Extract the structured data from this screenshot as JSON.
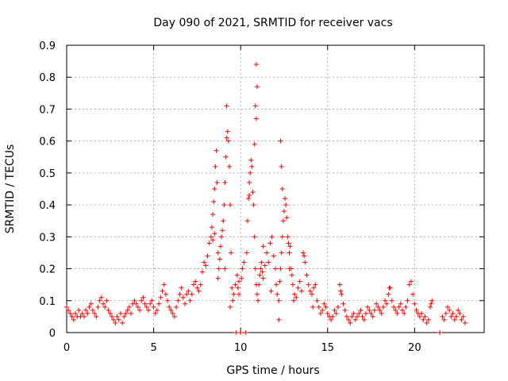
{
  "chart_data": {
    "type": "scatter",
    "title": "Day 090 of 2021, SRMTID for receiver vacs",
    "xlabel": "GPS time / hours",
    "ylabel": "SRMTID / TECUs",
    "xlim": [
      0,
      24
    ],
    "ylim": [
      0,
      0.9
    ],
    "xticks": [
      0,
      5,
      10,
      15,
      20
    ],
    "xtick_labels": [
      "0",
      "5",
      "10",
      "15",
      "20"
    ],
    "yticks": [
      0,
      0.1,
      0.2,
      0.3,
      0.4,
      0.5,
      0.6,
      0.7,
      0.8,
      0.9
    ],
    "ytick_labels": [
      "0",
      "0.1",
      "0.2",
      "0.3",
      "0.4",
      "0.5",
      "0.6",
      "0.7",
      "0.8",
      "0.9"
    ],
    "grid": true,
    "marker": "+",
    "color": "#ff0000",
    "series": [
      {
        "name": "SRMTID",
        "points": [
          [
            0.0,
            0.08
          ],
          [
            0.1,
            0.07
          ],
          [
            0.2,
            0.06
          ],
          [
            0.3,
            0.05
          ],
          [
            0.4,
            0.04
          ],
          [
            0.5,
            0.06
          ],
          [
            0.6,
            0.05
          ],
          [
            0.7,
            0.07
          ],
          [
            0.8,
            0.05
          ],
          [
            0.9,
            0.06
          ],
          [
            1.0,
            0.05
          ],
          [
            1.1,
            0.07
          ],
          [
            1.2,
            0.06
          ],
          [
            1.3,
            0.08
          ],
          [
            1.4,
            0.09
          ],
          [
            1.5,
            0.07
          ],
          [
            1.6,
            0.06
          ],
          [
            1.7,
            0.05
          ],
          [
            1.8,
            0.08
          ],
          [
            1.9,
            0.1
          ],
          [
            2.0,
            0.11
          ],
          [
            2.1,
            0.09
          ],
          [
            2.2,
            0.08
          ],
          [
            2.3,
            0.1
          ],
          [
            2.4,
            0.07
          ],
          [
            2.5,
            0.06
          ],
          [
            2.6,
            0.05
          ],
          [
            2.7,
            0.04
          ],
          [
            2.8,
            0.03
          ],
          [
            2.9,
            0.05
          ],
          [
            3.0,
            0.04
          ],
          [
            3.1,
            0.06
          ],
          [
            3.2,
            0.03
          ],
          [
            3.3,
            0.05
          ],
          [
            3.4,
            0.06
          ],
          [
            3.5,
            0.07
          ],
          [
            3.6,
            0.08
          ],
          [
            3.7,
            0.06
          ],
          [
            3.8,
            0.09
          ],
          [
            3.9,
            0.1
          ],
          [
            4.0,
            0.09
          ],
          [
            4.1,
            0.08
          ],
          [
            4.2,
            0.07
          ],
          [
            4.3,
            0.1
          ],
          [
            4.4,
            0.11
          ],
          [
            4.5,
            0.09
          ],
          [
            4.6,
            0.08
          ],
          [
            4.7,
            0.07
          ],
          [
            4.8,
            0.09
          ],
          [
            4.9,
            0.1
          ],
          [
            5.0,
            0.08
          ],
          [
            5.1,
            0.06
          ],
          [
            5.2,
            0.07
          ],
          [
            5.3,
            0.09
          ],
          [
            5.4,
            0.11
          ],
          [
            5.5,
            0.13
          ],
          [
            5.6,
            0.15
          ],
          [
            5.7,
            0.12
          ],
          [
            5.8,
            0.1
          ],
          [
            5.9,
            0.08
          ],
          [
            6.0,
            0.07
          ],
          [
            6.1,
            0.06
          ],
          [
            6.2,
            0.05
          ],
          [
            6.3,
            0.08
          ],
          [
            6.4,
            0.1
          ],
          [
            6.5,
            0.12
          ],
          [
            6.6,
            0.14
          ],
          [
            6.7,
            0.11
          ],
          [
            6.8,
            0.09
          ],
          [
            6.9,
            0.12
          ],
          [
            7.0,
            0.13
          ],
          [
            7.1,
            0.1
          ],
          [
            7.2,
            0.12
          ],
          [
            7.3,
            0.15
          ],
          [
            7.4,
            0.16
          ],
          [
            7.5,
            0.14
          ],
          [
            7.6,
            0.13
          ],
          [
            7.7,
            0.15
          ],
          [
            7.8,
            0.19
          ],
          [
            7.9,
            0.22
          ],
          [
            8.0,
            0.21
          ],
          [
            8.1,
            0.24
          ],
          [
            8.2,
            0.28
          ],
          [
            8.3,
            0.3
          ],
          [
            8.35,
            0.33
          ],
          [
            8.4,
            0.37
          ],
          [
            8.45,
            0.41
          ],
          [
            8.5,
            0.45
          ],
          [
            8.55,
            0.52
          ],
          [
            8.6,
            0.57
          ],
          [
            8.65,
            0.47
          ],
          [
            8.7,
            0.25
          ],
          [
            8.75,
            0.2
          ],
          [
            8.8,
            0.23
          ],
          [
            8.85,
            0.27
          ],
          [
            8.9,
            0.3
          ],
          [
            8.95,
            0.32
          ],
          [
            9.0,
            0.35
          ],
          [
            9.05,
            0.4
          ],
          [
            9.1,
            0.47
          ],
          [
            9.15,
            0.55
          ],
          [
            9.2,
            0.61
          ],
          [
            9.25,
            0.63
          ],
          [
            9.3,
            0.6
          ],
          [
            9.35,
            0.52
          ],
          [
            9.4,
            0.4
          ],
          [
            9.45,
            0.25
          ],
          [
            9.5,
            0.14
          ],
          [
            9.55,
            0.1
          ],
          [
            9.6,
            0.12
          ],
          [
            9.7,
            0.15
          ],
          [
            9.75,
            0.0
          ],
          [
            9.8,
            0.18
          ],
          [
            9.85,
            0.14
          ],
          [
            9.9,
            0.12
          ],
          [
            10.0,
            0.0
          ],
          [
            10.05,
            0.17
          ],
          [
            10.1,
            0.2
          ],
          [
            10.2,
            0.22
          ],
          [
            10.3,
            0.0
          ],
          [
            10.35,
            0.25
          ],
          [
            10.4,
            0.35
          ],
          [
            10.45,
            0.42
          ],
          [
            10.5,
            0.47
          ],
          [
            10.55,
            0.5
          ],
          [
            10.6,
            0.54
          ],
          [
            10.65,
            0.52
          ],
          [
            10.7,
            0.44
          ],
          [
            10.75,
            0.4
          ],
          [
            10.8,
            0.3
          ],
          [
            10.85,
            0.2
          ],
          [
            10.9,
            0.15
          ],
          [
            10.95,
            0.12
          ],
          [
            11.0,
            0.1
          ],
          [
            11.05,
            0.15
          ],
          [
            11.1,
            0.18
          ],
          [
            11.15,
            0.2
          ],
          [
            11.2,
            0.22
          ],
          [
            11.25,
            0.19
          ],
          [
            11.3,
            0.17
          ],
          [
            11.4,
            0.21
          ],
          [
            11.5,
            0.25
          ],
          [
            11.6,
            0.22
          ],
          [
            11.7,
            0.28
          ],
          [
            11.8,
            0.3
          ],
          [
            11.9,
            0.24
          ],
          [
            12.0,
            0.2
          ],
          [
            12.05,
            0.15
          ],
          [
            12.1,
            0.12
          ],
          [
            12.2,
            0.1
          ],
          [
            12.25,
            0.16
          ],
          [
            12.3,
            0.2
          ],
          [
            12.35,
            0.25
          ],
          [
            12.4,
            0.3
          ],
          [
            12.45,
            0.35
          ],
          [
            12.5,
            0.38
          ],
          [
            12.55,
            0.42
          ],
          [
            12.6,
            0.4
          ],
          [
            12.65,
            0.36
          ],
          [
            12.7,
            0.3
          ],
          [
            12.75,
            0.28
          ],
          [
            12.8,
            0.25
          ],
          [
            12.85,
            0.27
          ],
          [
            12.9,
            0.2
          ],
          [
            12.95,
            0.18
          ],
          [
            13.0,
            0.15
          ],
          [
            13.1,
            0.12
          ],
          [
            13.2,
            0.11
          ],
          [
            13.3,
            0.14
          ],
          [
            13.4,
            0.16
          ],
          [
            13.5,
            0.13
          ],
          [
            13.6,
            0.25
          ],
          [
            13.65,
            0.24
          ],
          [
            13.7,
            0.22
          ],
          [
            13.8,
            0.18
          ],
          [
            13.9,
            0.15
          ],
          [
            14.0,
            0.13
          ],
          [
            14.1,
            0.12
          ],
          [
            14.2,
            0.14
          ],
          [
            14.3,
            0.15
          ],
          [
            14.4,
            0.1
          ],
          [
            14.5,
            0.08
          ],
          [
            14.6,
            0.06
          ],
          [
            14.7,
            0.07
          ],
          [
            14.8,
            0.09
          ],
          [
            14.9,
            0.08
          ],
          [
            15.0,
            0.06
          ],
          [
            15.1,
            0.05
          ],
          [
            15.2,
            0.04
          ],
          [
            15.3,
            0.05
          ],
          [
            15.4,
            0.07
          ],
          [
            15.5,
            0.06
          ],
          [
            15.6,
            0.08
          ],
          [
            15.7,
            0.15
          ],
          [
            15.8,
            0.12
          ],
          [
            15.9,
            0.09
          ],
          [
            16.0,
            0.07
          ],
          [
            16.1,
            0.05
          ],
          [
            16.2,
            0.04
          ],
          [
            16.3,
            0.03
          ],
          [
            16.4,
            0.05
          ],
          [
            16.5,
            0.06
          ],
          [
            16.6,
            0.04
          ],
          [
            16.7,
            0.05
          ],
          [
            16.8,
            0.06
          ],
          [
            16.9,
            0.07
          ],
          [
            17.0,
            0.05
          ],
          [
            17.1,
            0.04
          ],
          [
            17.2,
            0.06
          ],
          [
            17.3,
            0.08
          ],
          [
            17.4,
            0.07
          ],
          [
            17.5,
            0.06
          ],
          [
            17.6,
            0.05
          ],
          [
            17.7,
            0.07
          ],
          [
            17.8,
            0.09
          ],
          [
            17.9,
            0.08
          ],
          [
            18.0,
            0.07
          ],
          [
            18.1,
            0.06
          ],
          [
            18.2,
            0.08
          ],
          [
            18.3,
            0.1
          ],
          [
            18.4,
            0.09
          ],
          [
            18.5,
            0.12
          ],
          [
            18.6,
            0.14
          ],
          [
            18.7,
            0.1
          ],
          [
            18.8,
            0.08
          ],
          [
            18.9,
            0.07
          ],
          [
            19.0,
            0.06
          ],
          [
            19.1,
            0.08
          ],
          [
            19.2,
            0.09
          ],
          [
            19.3,
            0.07
          ],
          [
            19.4,
            0.06
          ],
          [
            19.5,
            0.08
          ],
          [
            19.6,
            0.1
          ],
          [
            19.7,
            0.15
          ],
          [
            19.8,
            0.16
          ],
          [
            19.9,
            0.12
          ],
          [
            20.0,
            0.09
          ],
          [
            20.1,
            0.07
          ],
          [
            20.2,
            0.06
          ],
          [
            20.3,
            0.05
          ],
          [
            20.4,
            0.06
          ],
          [
            20.5,
            0.04
          ],
          [
            20.6,
            0.05
          ],
          [
            20.7,
            0.03
          ],
          [
            20.8,
            0.04
          ],
          [
            20.9,
            0.08
          ],
          [
            21.0,
            0.1
          ],
          [
            21.45,
            0.0
          ],
          [
            21.6,
            0.05
          ],
          [
            21.7,
            0.04
          ],
          [
            21.8,
            0.06
          ],
          [
            21.9,
            0.08
          ],
          [
            22.0,
            0.07
          ],
          [
            22.1,
            0.05
          ],
          [
            22.2,
            0.06
          ],
          [
            22.3,
            0.04
          ],
          [
            22.4,
            0.05
          ],
          [
            22.5,
            0.07
          ],
          [
            22.6,
            0.06
          ],
          [
            22.7,
            0.04
          ],
          [
            22.8,
            0.05
          ],
          [
            22.9,
            0.03
          ],
          [
            9.2,
            0.71
          ],
          [
            10.9,
            0.84
          ],
          [
            10.95,
            0.77
          ],
          [
            10.85,
            0.71
          ],
          [
            10.9,
            0.67
          ],
          [
            10.8,
            0.59
          ],
          [
            12.3,
            0.6
          ],
          [
            12.35,
            0.52
          ],
          [
            12.4,
            0.45
          ],
          [
            12.2,
            0.04
          ],
          [
            8.5,
            0.31
          ],
          [
            8.4,
            0.29
          ],
          [
            8.7,
            0.17
          ],
          [
            9.1,
            0.2
          ],
          [
            9.4,
            0.08
          ],
          [
            9.9,
            0.16
          ],
          [
            10.5,
            0.43
          ],
          [
            11.3,
            0.27
          ],
          [
            11.75,
            0.13
          ],
          [
            12.8,
            0.2
          ],
          [
            13.05,
            0.1
          ],
          [
            14.15,
            0.08
          ],
          [
            15.75,
            0.13
          ],
          [
            18.55,
            0.14
          ],
          [
            20.95,
            0.09
          ]
        ]
      }
    ]
  }
}
